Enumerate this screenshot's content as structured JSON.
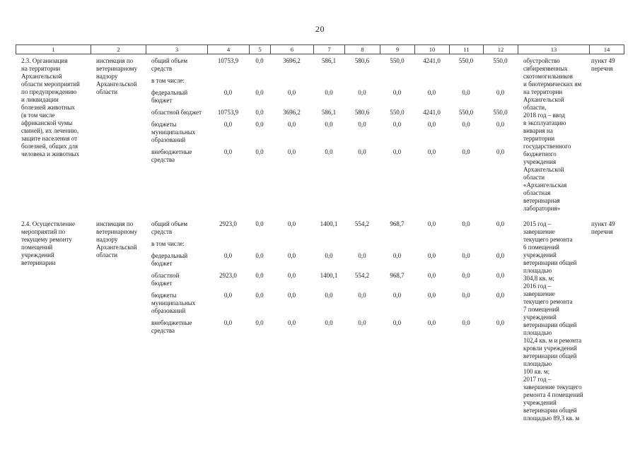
{
  "page": {
    "number": "20"
  },
  "table": {
    "column_numbers": [
      "1",
      "2",
      "3",
      "4",
      "5",
      "6",
      "7",
      "8",
      "9",
      "10",
      "11",
      "12",
      "13",
      "14"
    ],
    "rows": [
      {
        "activity": "2.3. Организация\nна территории\nАрхангельской\nобласти мероприятий\nпо предупреждению\nи ликвидации\nболезней животных\n(в том числе\nафриканской чумы\nсвиней), их лечению,\nзащите населения от\nболезней, общих для\nчеловека и животных",
        "executor": "инспекция по\nветеринарному\nнадзору\nАрхангельской\nобласти",
        "funding": [
          {
            "label": "общий объем\nсредств",
            "values": [
              "10753,9",
              "0,0",
              "3696,2",
              "586,1",
              "580,6",
              "550,0",
              "4241,0",
              "550,0",
              "550,0"
            ]
          },
          {
            "label": "в том числе:",
            "values": []
          },
          {
            "label": "федеральный\nбюджет",
            "values": [
              "0,0",
              "0,0",
              "0,0",
              "0,0",
              "0,0",
              "0,0",
              "0,0",
              "0,0",
              "0,0"
            ]
          },
          {
            "label": "областной бюджет",
            "values": [
              "10753,9",
              "0,0",
              "3696,2",
              "586,1",
              "580,6",
              "550,0",
              "4241,0",
              "550,0",
              "550,0"
            ]
          },
          {
            "label": "бюджеты\nмуниципальных\nобразований",
            "values": [
              "0,0",
              "0,0",
              "0,0",
              "0,0",
              "0,0",
              "0,0",
              "0,0",
              "0,0",
              "0,0"
            ]
          },
          {
            "label": "внебюджетные\nсредства",
            "values": [
              "0,0",
              "0,0",
              "0,0",
              "0,0",
              "0,0",
              "0,0",
              "0,0",
              "0,0",
              "0,0"
            ]
          }
        ],
        "result": "обустройство\nсибиреязвенных\nскотомогильников\nи биотермических ям\nна территории\nАрхангельской\nобласти,\n2018 год – ввод\nв эксплуатацию\nвивария на\nтерритории\nгосударственного\nбюджетного\nучреждения\nАрхангельской\nобласти\n«Архангельская\nобластная\nветеринарная\nлаборатория»",
        "reference": "пункт 49\nперечня"
      },
      {
        "activity": "2.4. Осуществление\nмероприятий по\nтекущему ремонту\nпомещений\nучреждений\nветеринарии",
        "executor": "инспекция по\nветеринарному\nнадзору\nАрхангельской\nобласти",
        "funding": [
          {
            "label": "общий объем\nсредств",
            "values": [
              "2923,0",
              "0,0",
              "0,0",
              "1400,1",
              "554,2",
              "968,7",
              "0,0",
              "0,0",
              "0,0"
            ]
          },
          {
            "label": "в том числе:",
            "values": []
          },
          {
            "label": "федеральный\nбюджет",
            "values": [
              "0,0",
              "0,0",
              "0,0",
              "0,0",
              "0,0",
              "0,0",
              "0,0",
              "0,0",
              "0,0"
            ]
          },
          {
            "label": "областной\nбюджет",
            "values": [
              "2923,0",
              "0,0",
              "0,0",
              "1400,1",
              "554,2",
              "968,7",
              "0,0",
              "0,0",
              "0,0"
            ]
          },
          {
            "label": "бюджеты\nмуниципальных\nобразований",
            "values": [
              "0,0",
              "0,0",
              "0,0",
              "0,0",
              "0,0",
              "0,0",
              "0,0",
              "0,0",
              "0,0"
            ]
          },
          {
            "label": "внебюджетные\nсредства",
            "values": [
              "0,0",
              "0,0",
              "0,0",
              "0,0",
              "0,0",
              "0,0",
              "0,0",
              "0,0",
              "0,0"
            ]
          }
        ],
        "result": "2015 год –\nзавершение\nтекущего ремонта\n6 помещений\nучреждений\nветеринарии общей\nплощадью\n304,8 кв. м;\n2016 год –\nзавершение\nтекущего ремонта\n7 помещений\nучреждений\nветеринарии общей\nплощадью\n102,4 кв. м и ремонта\nкровли учреждений\nветеринарии общей\nплощадью\n100 кв. м;\n2017 год –\nзавершение текущего\nремонта 4 помещений\nучреждений\nветеринарии общей\nплощадью 89,3 кв. м",
        "reference": "пункт 49\nперечня"
      }
    ]
  }
}
